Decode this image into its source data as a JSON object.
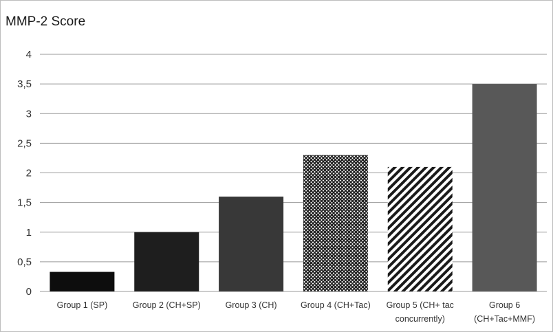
{
  "chart_data": {
    "type": "bar",
    "title": "MMP-2 Score",
    "xlabel": "",
    "ylabel": "",
    "ylim": [
      0,
      4
    ],
    "yticks": [
      "0",
      "0,5",
      "1",
      "1,5",
      "2",
      "2,5",
      "3",
      "3,5",
      "4"
    ],
    "grid": true,
    "categories": [
      [
        "Group 1 (SP)"
      ],
      [
        "Group 2 (CH+SP)"
      ],
      [
        "Group 3 (CH)"
      ],
      [
        "Group 4 (CH+Tac)"
      ],
      [
        "Group 5 (CH+ tac",
        "concurrently)"
      ],
      [
        "Group 6",
        "(CH+Tac+MMF)"
      ]
    ],
    "values": [
      0.33,
      1.0,
      1.6,
      2.3,
      2.1,
      3.5
    ],
    "bar_styles": [
      "solid-black",
      "solid-dark",
      "solid-darkgray",
      "crosshatch",
      "diagonal-stripes",
      "solid-gray"
    ],
    "colors": {
      "black": "#0d0d0d",
      "dark": "#1e1e1e",
      "darkgray": "#383838",
      "gray": "#585858",
      "grid": "#999999"
    }
  }
}
